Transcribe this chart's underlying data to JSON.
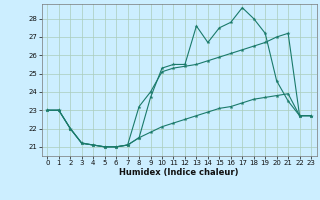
{
  "xlabel": "Humidex (Indice chaleur)",
  "bg_color": "#cceeff",
  "grid_color": "#aaccbb",
  "line_color": "#1a7a6a",
  "xlim": [
    -0.5,
    23.5
  ],
  "ylim": [
    20.5,
    28.8
  ],
  "xticks": [
    0,
    1,
    2,
    3,
    4,
    5,
    6,
    7,
    8,
    9,
    10,
    11,
    12,
    13,
    14,
    15,
    16,
    17,
    18,
    19,
    20,
    21,
    22,
    23
  ],
  "yticks": [
    21,
    22,
    23,
    24,
    25,
    26,
    27,
    28
  ],
  "line1_x": [
    0,
    1,
    2,
    3,
    4,
    5,
    6,
    7,
    8,
    9,
    10,
    11,
    12,
    13,
    14,
    15,
    16,
    17,
    18,
    19,
    20,
    21,
    22,
    23
  ],
  "line1_y": [
    23.0,
    23.0,
    22.0,
    21.2,
    21.1,
    21.0,
    21.0,
    21.1,
    21.5,
    23.7,
    25.3,
    25.5,
    25.5,
    27.6,
    26.7,
    27.5,
    27.8,
    28.6,
    28.0,
    27.2,
    24.6,
    23.5,
    22.7,
    22.7
  ],
  "line2_x": [
    0,
    1,
    2,
    3,
    4,
    5,
    6,
    7,
    8,
    9,
    10,
    11,
    12,
    13,
    14,
    15,
    16,
    17,
    18,
    19,
    20,
    21,
    22,
    23
  ],
  "line2_y": [
    23.0,
    23.0,
    22.0,
    21.2,
    21.1,
    21.0,
    21.0,
    21.1,
    23.2,
    24.0,
    25.1,
    25.3,
    25.4,
    25.5,
    25.7,
    25.9,
    26.1,
    26.3,
    26.5,
    26.7,
    27.0,
    27.2,
    22.7,
    22.7
  ],
  "line3_x": [
    0,
    1,
    2,
    3,
    4,
    5,
    6,
    7,
    8,
    9,
    10,
    11,
    12,
    13,
    14,
    15,
    16,
    17,
    18,
    19,
    20,
    21,
    22,
    23
  ],
  "line3_y": [
    23.0,
    23.0,
    22.0,
    21.2,
    21.1,
    21.0,
    21.0,
    21.1,
    21.5,
    21.8,
    22.1,
    22.3,
    22.5,
    22.7,
    22.9,
    23.1,
    23.2,
    23.4,
    23.6,
    23.7,
    23.8,
    23.9,
    22.7,
    22.7
  ]
}
